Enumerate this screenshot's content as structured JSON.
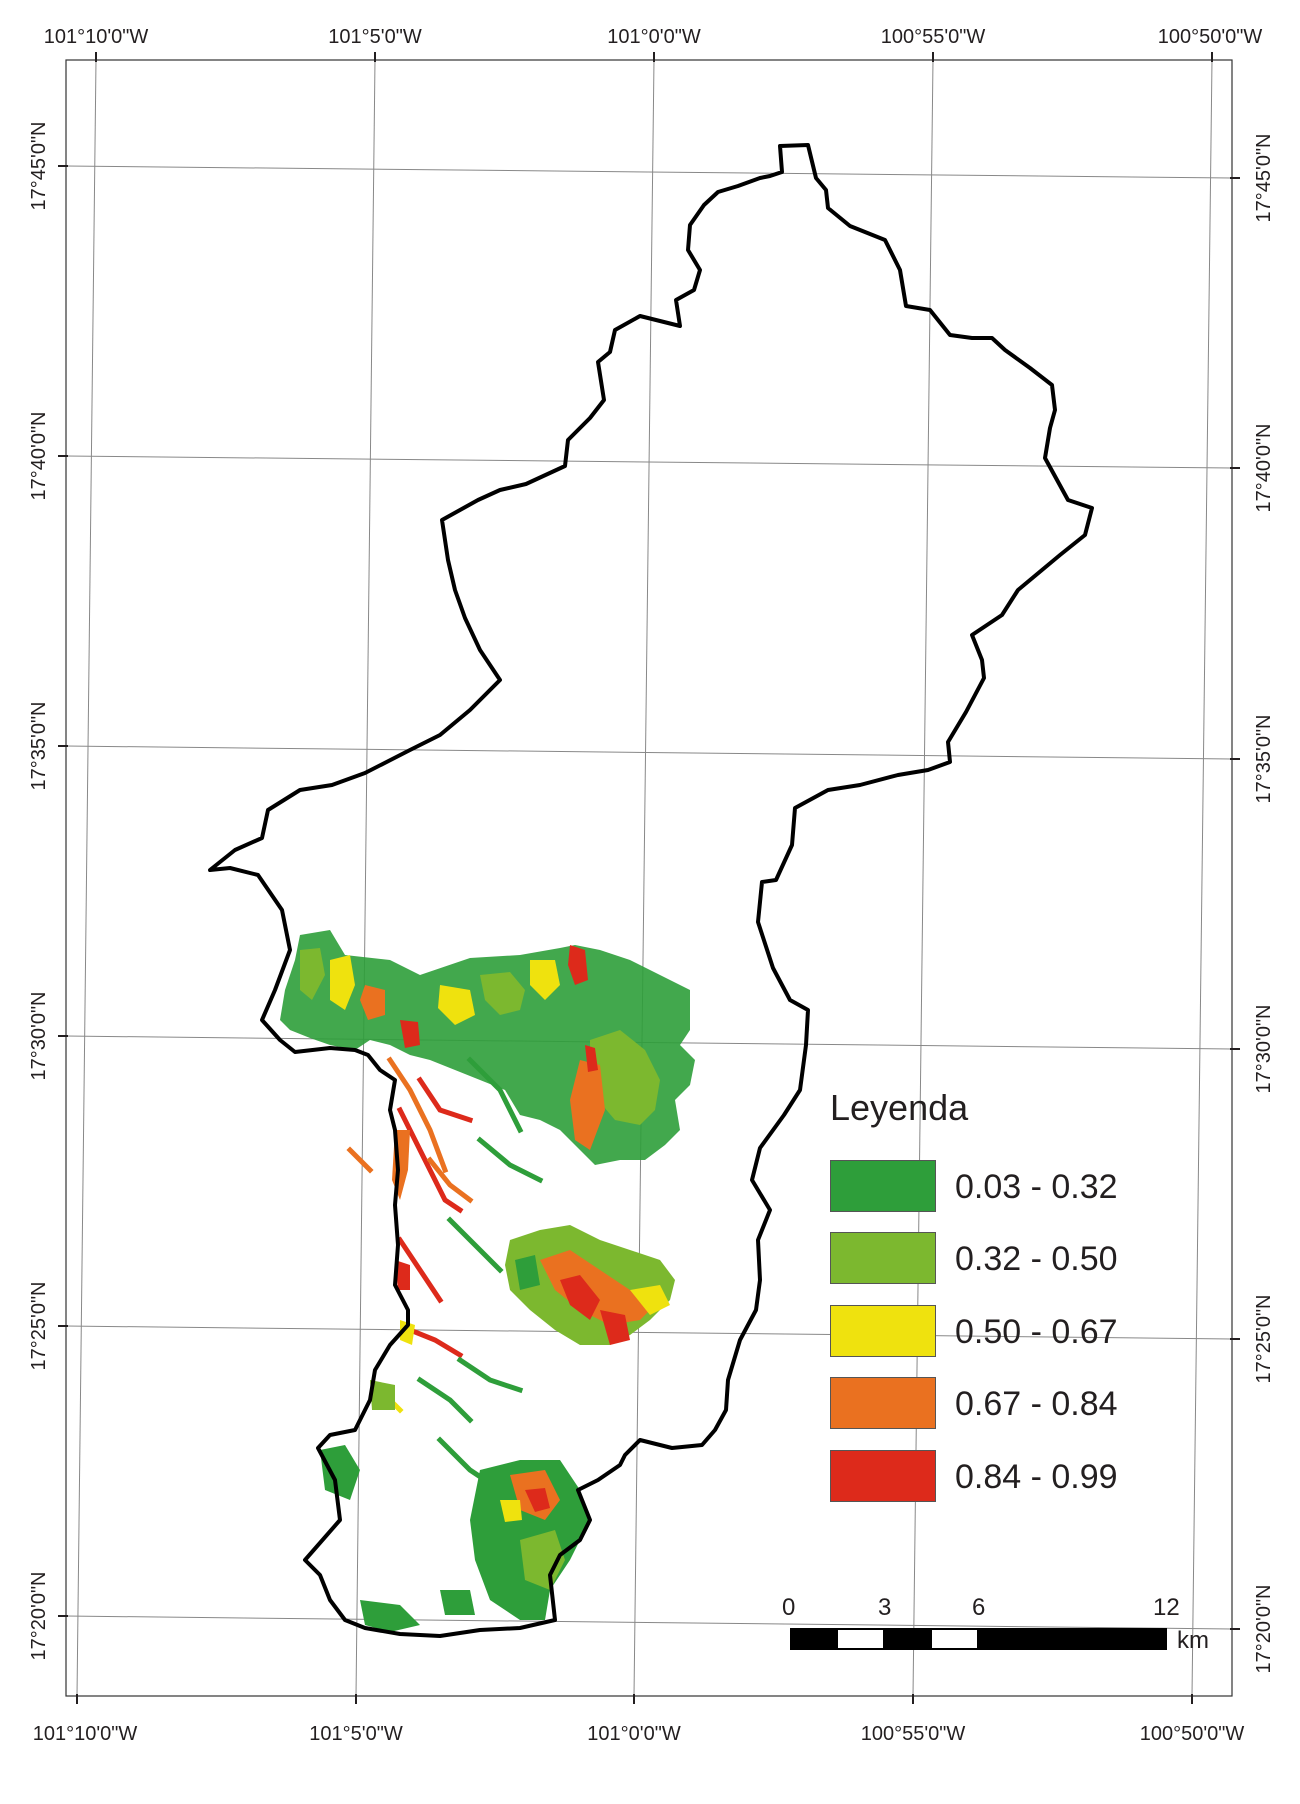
{
  "map": {
    "grid_top_labels": [
      "101°10'0\"W",
      "101°5'0\"W",
      "101°0'0\"W",
      "100°55'0\"W",
      "100°50'0\"W"
    ],
    "grid_bottom_labels": [
      "101°10'0\"W",
      "101°5'0\"W",
      "101°0'0\"W",
      "100°55'0\"W",
      "100°50'0\"W"
    ],
    "grid_left_labels": [
      "17°45'0\"N",
      "17°40'0\"N",
      "17°35'0\"N",
      "17°30'0\"N",
      "17°25'0\"N",
      "17°20'0\"N"
    ],
    "grid_right_labels": [
      "17°45'0\"N",
      "17°40'0\"N",
      "17°35'0\"N",
      "17°30'0\"N",
      "17°25'0\"N",
      "17°20'0\"N"
    ]
  },
  "legend": {
    "title": "Leyenda",
    "classes": [
      {
        "label": "0.03 - 0.32",
        "color": "#2e9e3a"
      },
      {
        "label": "0.32 - 0.50",
        "color": "#7cb82f"
      },
      {
        "label": "0.50 - 0.67",
        "color": "#efe20e"
      },
      {
        "label": "0.67 - 0.84",
        "color": "#ea7120"
      },
      {
        "label": "0.84 - 0.99",
        "color": "#dd2a1b"
      }
    ]
  },
  "scale_bar": {
    "ticks": [
      "0",
      "3",
      "6",
      "12"
    ],
    "unit": "km"
  }
}
